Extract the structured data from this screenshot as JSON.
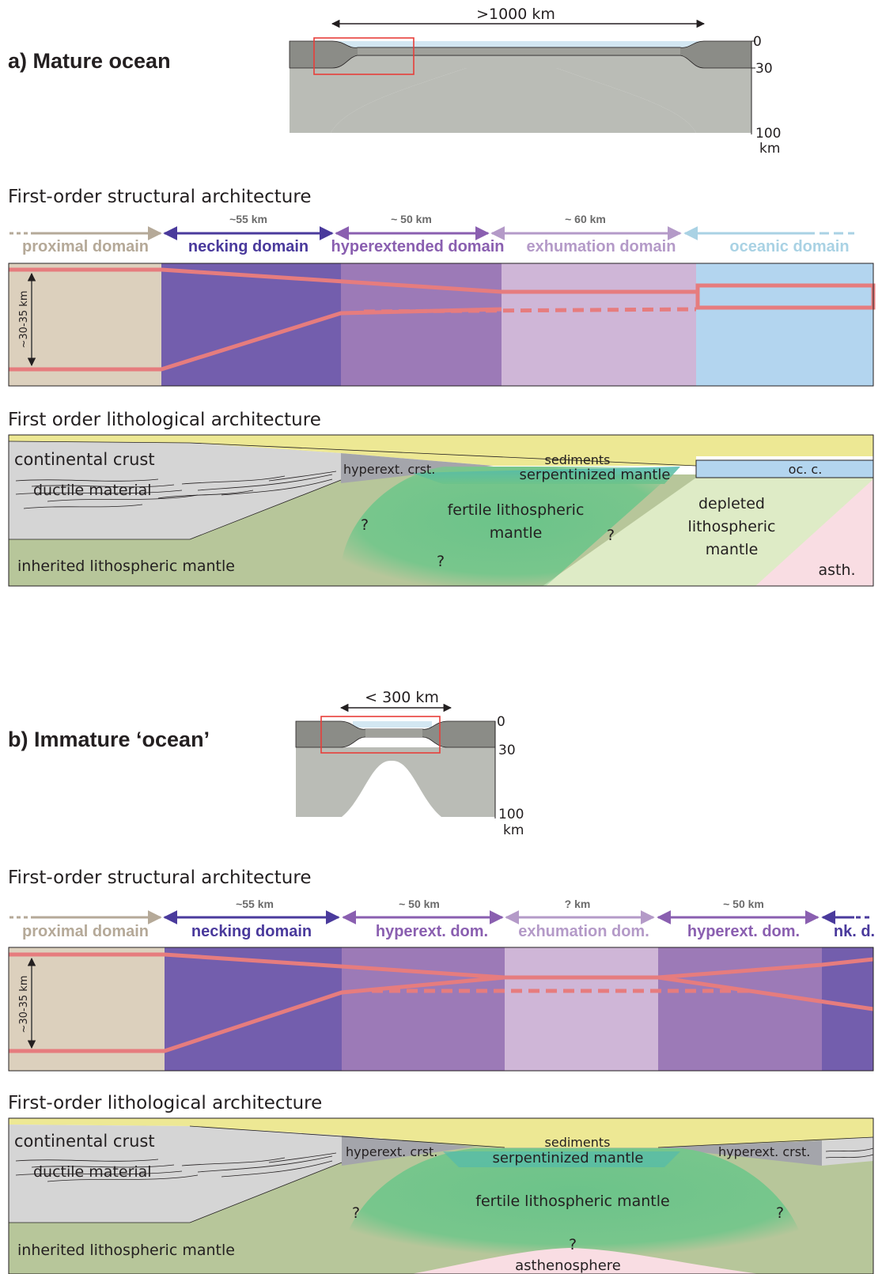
{
  "part_a": {
    "heading": "a) Mature ocean",
    "overview": {
      "width_label": ">1000 km",
      "depth_0": "0",
      "depth_30": "30",
      "depth_100": "100",
      "depth_unit": "km"
    },
    "structural": {
      "title": "First-order structural architecture",
      "thickness_label": "~30-35 km",
      "domains": [
        {
          "name": "proximal domain",
          "width": "",
          "color": "#b5a998"
        },
        {
          "name": "necking domain",
          "width": "~55 km",
          "color": "#4a3a9c"
        },
        {
          "name": "hyperextended domain",
          "width": "~ 50 km",
          "color": "#8a5fb0"
        },
        {
          "name": "exhumation domain",
          "width": "~ 60 km",
          "color": "#b49ac8"
        },
        {
          "name": "oceanic domain",
          "width": "",
          "color": "#a9d2e4"
        }
      ]
    },
    "lithological": {
      "title": "First order lithological architecture",
      "labels": {
        "continental_crust": "continental crust",
        "ductile_material": "ductile material",
        "hyperext_crust": "hyperext. crst.",
        "sediments": "sediments",
        "serpentinized_mantle": "serpentinized mantle",
        "oceanic_crust": "oc. c.",
        "fertile_mantle_1": "fertile lithospheric",
        "fertile_mantle_2": "mantle",
        "depleted_1": "depleted",
        "depleted_2": "lithospheric",
        "depleted_3": "mantle",
        "inherited_mantle": "inherited lithospheric mantle",
        "asthenosphere": "asth.",
        "question": "?"
      }
    }
  },
  "part_b": {
    "heading": "b) Immature ‘ocean’",
    "overview": {
      "width_label": "< 300 km",
      "depth_0": "0",
      "depth_30": "30",
      "depth_100": "100",
      "depth_unit": "km"
    },
    "structural": {
      "title": "First-order structural architecture",
      "thickness_label": "~30-35 km",
      "domains": [
        {
          "name": "proximal domain",
          "width": "",
          "color": "#b5a998"
        },
        {
          "name": "necking domain",
          "width": "~55 km",
          "color": "#4a3a9c"
        },
        {
          "name": "hyperext. dom.",
          "width": "~ 50 km",
          "color": "#8a5fb0"
        },
        {
          "name": "exhumation dom.",
          "width": "? km",
          "color": "#b49ac8"
        },
        {
          "name": "hyperext. dom.",
          "width": "~ 50 km",
          "color": "#8a5fb0"
        },
        {
          "name": "nk. d.",
          "width": "",
          "color": "#4a3a9c"
        }
      ]
    },
    "lithological": {
      "title": "First-order lithological architecture",
      "labels": {
        "continental_crust": "continental crust",
        "ductile_material": "ductile material",
        "hyperext_crust_left": "hyperext. crst.",
        "hyperext_crust_right": "hyperext. crst.",
        "sediments": "sediments",
        "serpentinized_mantle": "serpentinized mantle",
        "fertile_mantle": "fertile lithospheric mantle",
        "inherited_mantle": "inherited lithospheric mantle",
        "asthenosphere": "asthenosphere",
        "question": "?"
      }
    }
  }
}
